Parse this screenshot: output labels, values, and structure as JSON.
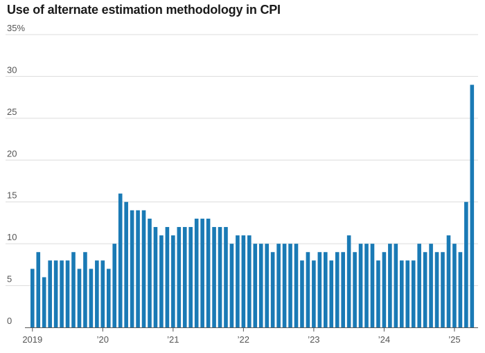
{
  "chart_data": {
    "type": "bar",
    "title": "Use of alternate estimation methodology in CPI",
    "xlabel": "",
    "ylabel": "",
    "ylim": [
      0,
      35
    ],
    "y_ticks": [
      {
        "value": 0,
        "label": "0"
      },
      {
        "value": 5,
        "label": "5"
      },
      {
        "value": 10,
        "label": "10"
      },
      {
        "value": 15,
        "label": "15"
      },
      {
        "value": 20,
        "label": "20"
      },
      {
        "value": 25,
        "label": "25"
      },
      {
        "value": 30,
        "label": "30"
      },
      {
        "value": 35,
        "label": "35%"
      }
    ],
    "x_ticks": [
      {
        "index": 0,
        "label": "2019"
      },
      {
        "index": 12,
        "label": "’20"
      },
      {
        "index": 24,
        "label": "’21"
      },
      {
        "index": 36,
        "label": "’22"
      },
      {
        "index": 48,
        "label": "’23"
      },
      {
        "index": 60,
        "label": "’24"
      },
      {
        "index": 72,
        "label": "’25"
      }
    ],
    "grid": true,
    "bar_color": "#1a7ab5",
    "categories": [
      "2019-01",
      "2019-02",
      "2019-03",
      "2019-04",
      "2019-05",
      "2019-06",
      "2019-07",
      "2019-08",
      "2019-09",
      "2019-10",
      "2019-11",
      "2019-12",
      "2020-01",
      "2020-02",
      "2020-03",
      "2020-04",
      "2020-05",
      "2020-06",
      "2020-07",
      "2020-08",
      "2020-09",
      "2020-10",
      "2020-11",
      "2020-12",
      "2021-01",
      "2021-02",
      "2021-03",
      "2021-04",
      "2021-05",
      "2021-06",
      "2021-07",
      "2021-08",
      "2021-09",
      "2021-10",
      "2021-11",
      "2021-12",
      "2022-01",
      "2022-02",
      "2022-03",
      "2022-04",
      "2022-05",
      "2022-06",
      "2022-07",
      "2022-08",
      "2022-09",
      "2022-10",
      "2022-11",
      "2022-12",
      "2023-01",
      "2023-02",
      "2023-03",
      "2023-04",
      "2023-05",
      "2023-06",
      "2023-07",
      "2023-08",
      "2023-09",
      "2023-10",
      "2023-11",
      "2023-12",
      "2024-01",
      "2024-02",
      "2024-03",
      "2024-04",
      "2024-05",
      "2024-06",
      "2024-07",
      "2024-08",
      "2024-09",
      "2024-10",
      "2024-11",
      "2024-12",
      "2025-01",
      "2025-02",
      "2025-03",
      "2025-04"
    ],
    "values": [
      7,
      9,
      6,
      8,
      8,
      8,
      8,
      9,
      7,
      9,
      7,
      8,
      8,
      7,
      10,
      16,
      15,
      14,
      14,
      14,
      13,
      12,
      11,
      12,
      11,
      12,
      12,
      12,
      13,
      13,
      13,
      12,
      12,
      12,
      10,
      11,
      11,
      11,
      10,
      10,
      10,
      9,
      10,
      10,
      10,
      10,
      8,
      9,
      8,
      9,
      9,
      8,
      9,
      9,
      11,
      9,
      10,
      10,
      10,
      8,
      9,
      10,
      10,
      8,
      8,
      8,
      10,
      9,
      10,
      9,
      9,
      11,
      10,
      9,
      15,
      29
    ]
  }
}
